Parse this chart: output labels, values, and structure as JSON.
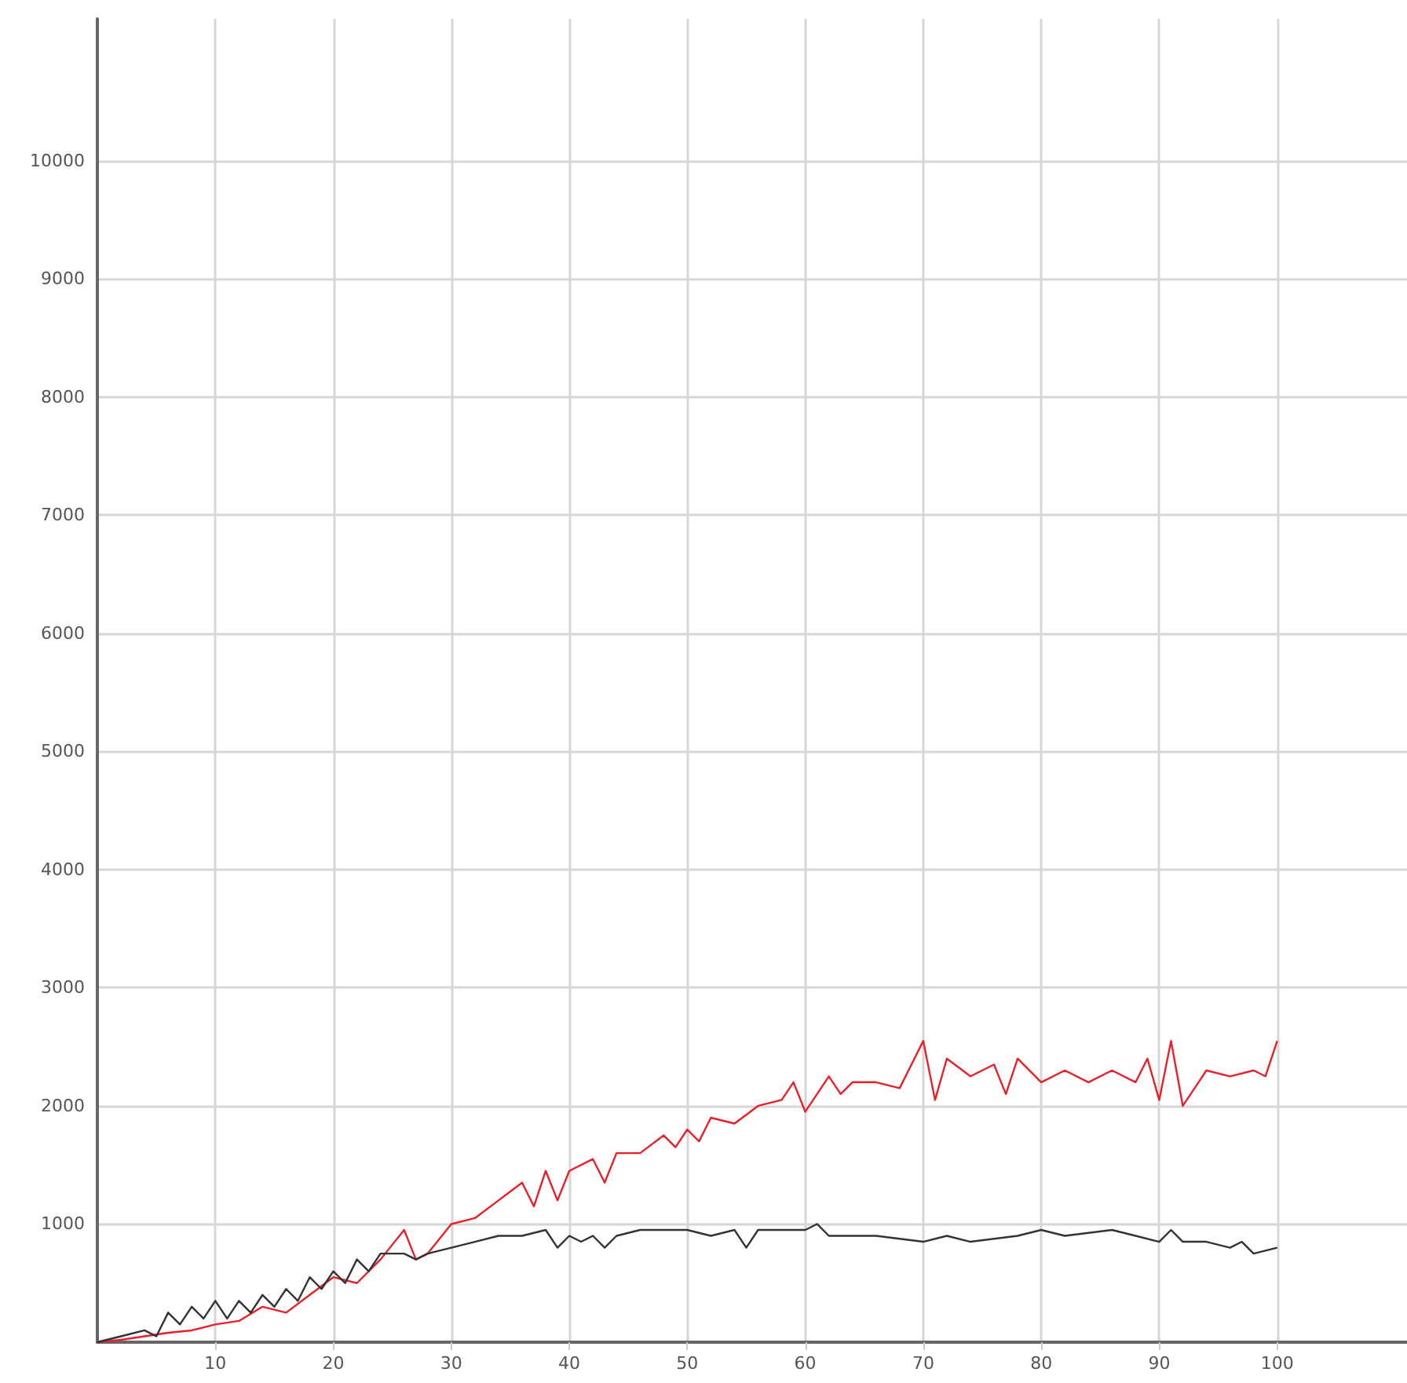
{
  "chart_data": {
    "type": "line",
    "xlim": [
      0,
      111
    ],
    "ylim": [
      0,
      11200
    ],
    "xticks": [
      10,
      20,
      30,
      40,
      50,
      60,
      70,
      80,
      90,
      100
    ],
    "yticks": [
      1000,
      2000,
      3000,
      4000,
      5000,
      6000,
      7000,
      8000,
      9000,
      10000
    ],
    "grid": true,
    "marker": "none",
    "line_style": "solid",
    "series": [
      {
        "color": "#e8202a",
        "x": [
          0,
          2,
          4,
          6,
          8,
          10,
          12,
          14,
          16,
          18,
          20,
          22,
          24,
          26,
          27,
          28,
          30,
          32,
          34,
          36,
          37,
          38,
          39,
          40,
          42,
          43,
          44,
          46,
          48,
          49,
          50,
          51,
          52,
          54,
          56,
          58,
          59,
          60,
          62,
          63,
          64,
          66,
          68,
          69,
          70,
          71,
          72,
          74,
          76,
          77,
          78,
          80,
          82,
          84,
          86,
          88,
          89,
          90,
          91,
          92,
          94,
          96,
          98,
          99,
          100
        ],
        "values": [
          0,
          20,
          50,
          80,
          100,
          150,
          180,
          300,
          250,
          400,
          550,
          500,
          700,
          950,
          700,
          750,
          1000,
          1050,
          1200,
          1350,
          1150,
          1450,
          1200,
          1450,
          1550,
          1350,
          1600,
          1600,
          1750,
          1650,
          1800,
          1700,
          1900,
          1850,
          2000,
          2050,
          2200,
          1950,
          2250,
          2100,
          2200,
          2200,
          2150,
          2350,
          2550,
          2050,
          2400,
          2250,
          2350,
          2100,
          2400,
          2200,
          2300,
          2200,
          2300,
          2200,
          2400,
          2050,
          2550,
          2000,
          2300,
          2250,
          2300,
          2250,
          2550
        ]
      },
      {
        "color": "#333333",
        "x": [
          0,
          2,
          4,
          5,
          6,
          7,
          8,
          9,
          10,
          11,
          12,
          13,
          14,
          15,
          16,
          17,
          18,
          19,
          20,
          21,
          22,
          23,
          24,
          26,
          27,
          28,
          30,
          32,
          34,
          36,
          38,
          39,
          40,
          41,
          42,
          43,
          44,
          46,
          48,
          50,
          52,
          54,
          55,
          56,
          58,
          60,
          61,
          62,
          64,
          66,
          70,
          72,
          74,
          78,
          80,
          82,
          86,
          88,
          90,
          91,
          92,
          94,
          96,
          97,
          98,
          100
        ],
        "values": [
          0,
          50,
          100,
          50,
          250,
          150,
          300,
          200,
          350,
          200,
          350,
          250,
          400,
          300,
          450,
          350,
          550,
          450,
          600,
          500,
          700,
          600,
          750,
          750,
          700,
          750,
          800,
          850,
          900,
          900,
          950,
          800,
          900,
          850,
          900,
          800,
          900,
          950,
          950,
          950,
          900,
          950,
          800,
          950,
          950,
          950,
          1000,
          900,
          900,
          900,
          850,
          900,
          850,
          900,
          950,
          900,
          950,
          900,
          850,
          950,
          850,
          850,
          800,
          850,
          750,
          800
        ]
      }
    ]
  }
}
